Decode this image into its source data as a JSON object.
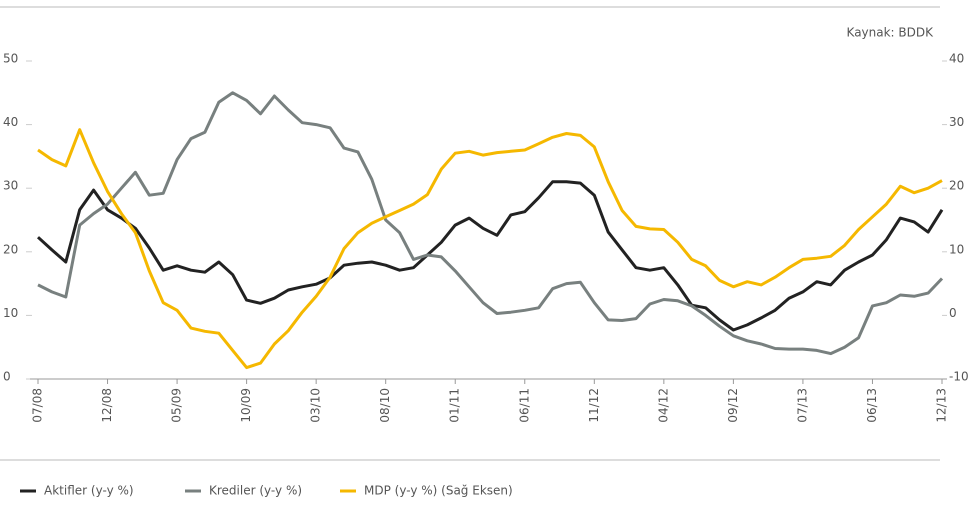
{
  "chart_data": {
    "type": "line",
    "source": "Kaynak: BDDK",
    "categories": [
      "07/08",
      null,
      null,
      null,
      null,
      "12/08",
      null,
      null,
      null,
      null,
      "05/09",
      null,
      null,
      null,
      null,
      "10/09",
      null,
      null,
      null,
      null,
      "03/10",
      null,
      null,
      null,
      null,
      "08/10",
      null,
      null,
      null,
      null,
      "01/11",
      null,
      null,
      null,
      null,
      "06/11",
      null,
      null,
      null,
      null,
      "11/12",
      null,
      null,
      null,
      null,
      "04/12",
      null,
      null,
      null,
      null,
      "09/12",
      null,
      null,
      null,
      null,
      "07/13",
      null,
      null,
      null,
      null,
      "06/13",
      null,
      null,
      null,
      null,
      "12/13"
    ],
    "series": [
      {
        "name": "Aktifler (y-y %)",
        "color": "#222222",
        "values": [
          22.3,
          20.3,
          18.4,
          26.6,
          29.7,
          26.6,
          25.3,
          23.7,
          20.6,
          17.1,
          17.8,
          17.1,
          16.8,
          18.4,
          16.4,
          12.4,
          11.9,
          12.7,
          14.0,
          14.5,
          14.9,
          15.9,
          17.9,
          18.2,
          18.4,
          17.9,
          17.1,
          17.5,
          19.5,
          21.5,
          24.2,
          25.3,
          23.7,
          22.6,
          25.8,
          26.3,
          28.5,
          31.0,
          31.0,
          30.8,
          28.9,
          23.1,
          20.3,
          17.5,
          17.1,
          17.5,
          14.8,
          11.6,
          11.2,
          9.3,
          7.7,
          8.5,
          9.6,
          10.8,
          12.7,
          13.7,
          15.3,
          14.8,
          17.1,
          18.4,
          19.5,
          21.9,
          25.3,
          24.7,
          23.1,
          26.6
        ]
      },
      {
        "name": "Krediler (y-y %)",
        "color": "#78807f",
        "values": [
          14.8,
          13.7,
          12.9,
          24.2,
          26.0,
          27.5,
          30.0,
          32.5,
          28.9,
          29.2,
          34.5,
          37.8,
          38.8,
          43.5,
          45.0,
          43.8,
          41.7,
          44.5,
          42.3,
          40.3,
          40.0,
          39.5,
          36.3,
          35.7,
          31.4,
          25.0,
          23.0,
          18.8,
          19.5,
          19.2,
          17.0,
          14.5,
          12.0,
          10.3,
          10.5,
          10.8,
          11.2,
          14.2,
          15.0,
          15.2,
          12.0,
          9.3,
          9.2,
          9.5,
          11.8,
          12.5,
          12.3,
          11.5,
          10.0,
          8.3,
          6.8,
          6.0,
          5.5,
          4.8,
          4.7,
          4.7,
          4.5,
          4.0,
          5.0,
          6.5,
          11.5,
          12.0,
          13.2,
          13.0,
          13.5,
          15.8
        ]
      },
      {
        "name": "MDP (y-y %) (Sağ Eksen)",
        "color": "#f5b800",
        "axis": "y2",
        "values": [
          26,
          24.5,
          23.5,
          29.2,
          24,
          19.5,
          16,
          13,
          7,
          2,
          0.8,
          -2,
          -2.5,
          -2.8,
          -5.5,
          -8.2,
          -7.5,
          -4.5,
          -2.4,
          0.5,
          3,
          6,
          10.5,
          13,
          14.5,
          15.5,
          16.5,
          17.5,
          19,
          23,
          25.5,
          25.8,
          25.2,
          25.6,
          25.8,
          26,
          27,
          28,
          28.6,
          28.3,
          26.5,
          21,
          16.5,
          14,
          13.6,
          13.5,
          11.5,
          8.8,
          7.8,
          5.5,
          4.5,
          5.3,
          4.8,
          6,
          7.5,
          8.8,
          9,
          9.3,
          11,
          13.5,
          15.5,
          17.5,
          20.3,
          19.3,
          20,
          21.2
        ]
      }
    ],
    "ylim": [
      0,
      50
    ],
    "yticks": [
      0,
      10,
      20,
      30,
      40,
      50
    ],
    "y2lim": [
      -10,
      40
    ],
    "y2ticks": [
      -10,
      0,
      10,
      20,
      30,
      40
    ],
    "grid": false,
    "legend": "bottom"
  }
}
